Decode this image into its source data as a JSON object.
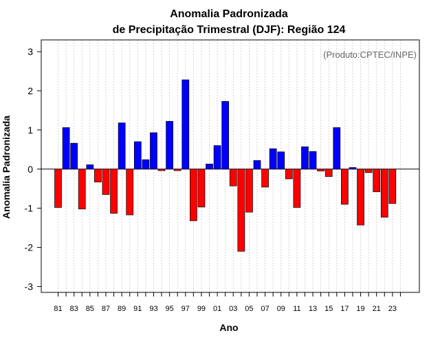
{
  "chart_data": {
    "type": "bar",
    "title_line1": "Anomalia Padronizada",
    "title_line2": "de Precipitação Trimestral (DJF): Região 124",
    "xlabel": "Ano",
    "ylabel": "Anomalia Padronizada",
    "source_note": "(Produto:CPTEC/INPE)",
    "ylim": [
      -3.15,
      3.3
    ],
    "yticks": [
      "-3",
      "-2",
      "-1",
      "0",
      "1",
      "2",
      "3"
    ],
    "ytick_values": [
      -3,
      -2,
      -1,
      0,
      1,
      2,
      3
    ],
    "xtick_labels": [
      "81",
      "83",
      "85",
      "87",
      "89",
      "91",
      "93",
      "95",
      "97",
      "99",
      "01",
      "03",
      "05",
      "07",
      "09",
      "11",
      "13",
      "15",
      "17",
      "19",
      "21",
      "23"
    ],
    "categories": [
      "1981",
      "1982",
      "1983",
      "1984",
      "1985",
      "1986",
      "1987",
      "1988",
      "1989",
      "1990",
      "1991",
      "1992",
      "1993",
      "1994",
      "1995",
      "1996",
      "1997",
      "1998",
      "1999",
      "2000",
      "2001",
      "2002",
      "2003",
      "2004",
      "2005",
      "2006",
      "2007",
      "2008",
      "2009",
      "2010",
      "2011",
      "2012",
      "2013",
      "2014",
      "2015",
      "2016",
      "2017",
      "2018",
      "2019",
      "2020",
      "2021",
      "2022",
      "2023",
      "2024"
    ],
    "values": [
      -0.98,
      1.06,
      0.66,
      -1.02,
      0.11,
      -0.33,
      -0.65,
      -1.13,
      1.18,
      -1.17,
      0.7,
      0.24,
      0.93,
      -0.04,
      1.22,
      -0.04,
      2.28,
      -1.32,
      -0.97,
      0.13,
      0.6,
      1.73,
      -0.43,
      -2.1,
      -1.1,
      0.22,
      -0.46,
      0.52,
      0.44,
      -0.25,
      -0.98,
      0.57,
      0.45,
      -0.05,
      -0.19,
      1.06,
      -0.9,
      0.04,
      -1.43,
      -0.09,
      -0.58,
      -1.23,
      -0.88,
      0.0
    ],
    "colors": {
      "positive": "#0000ff",
      "negative": "#ff0000",
      "outline": "#000000",
      "grid": "#c8c8c8"
    }
  }
}
